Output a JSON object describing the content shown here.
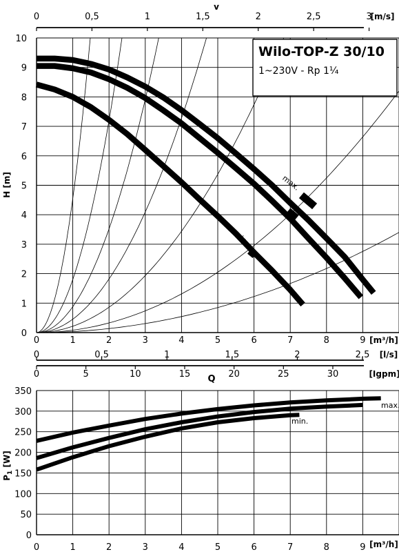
{
  "chart_data": [
    {
      "type": "line",
      "title": "Wilo-TOP-Z 30/10",
      "subtitle": "1~230V - Rp 1¼",
      "xlabel": "Q",
      "ylabel": "H [m]",
      "x_unit": "[m³/h]",
      "xlim": [
        0,
        10
      ],
      "ylim": [
        0,
        10
      ],
      "x_ticks": [
        "0",
        "1",
        "2",
        "3",
        "4",
        "5",
        "6",
        "7",
        "8",
        "9"
      ],
      "y_ticks": [
        "0",
        "1",
        "2",
        "3",
        "4",
        "5",
        "6",
        "7",
        "8",
        "9",
        "10"
      ],
      "grid": true,
      "secondary_axes": [
        {
          "label": "v",
          "unit": "[m/s]",
          "ticks": [
            "0",
            "0,5",
            "1",
            "1,5",
            "2",
            "2,5",
            "3"
          ],
          "values": [
            0,
            0.5,
            1,
            1.5,
            2,
            2.5,
            3
          ],
          "max": 3.27
        },
        {
          "unit": "[l/s]",
          "ticks": [
            "0",
            "0,5",
            "1",
            "1,5",
            "2",
            "2,5"
          ],
          "values": [
            0,
            0.5,
            1,
            1.5,
            2,
            2.5
          ],
          "max": 2.78
        },
        {
          "unit": "[Igpm]",
          "ticks": [
            "0",
            "5",
            "10",
            "15",
            "20",
            "25",
            "30"
          ],
          "values": [
            0,
            5,
            10,
            15,
            20,
            25,
            30
          ],
          "max": 36.7
        }
      ],
      "series": [
        {
          "name": "max.",
          "x": [
            0,
            0.5,
            1,
            1.5,
            2,
            2.5,
            3,
            3.5,
            4,
            4.5,
            5,
            5.5,
            6,
            6.5,
            7,
            7.5,
            8,
            8.5,
            9,
            9.3
          ],
          "y": [
            9.3,
            9.3,
            9.25,
            9.12,
            8.93,
            8.66,
            8.35,
            7.98,
            7.55,
            7.08,
            6.6,
            6.08,
            5.55,
            5.0,
            4.4,
            3.82,
            3.2,
            2.57,
            1.8,
            1.35
          ]
        },
        {
          "x": [
            0,
            0.5,
            1,
            1.5,
            2,
            2.5,
            3,
            3.5,
            4,
            4.5,
            5,
            5.5,
            6,
            6.5,
            7,
            7.5,
            8,
            8.5,
            8.95
          ],
          "y": [
            9.05,
            9.05,
            8.97,
            8.83,
            8.6,
            8.31,
            7.96,
            7.54,
            7.1,
            6.6,
            6.1,
            5.58,
            5.05,
            4.47,
            3.87,
            3.2,
            2.54,
            1.85,
            1.2
          ]
        },
        {
          "name": "min.",
          "x": [
            0,
            0.5,
            1,
            1.5,
            2,
            2.5,
            3,
            3.5,
            4,
            4.5,
            5,
            5.5,
            6,
            6.5,
            7,
            7.35
          ],
          "y": [
            8.42,
            8.25,
            8.0,
            7.65,
            7.22,
            6.74,
            6.2,
            5.65,
            5.1,
            4.52,
            3.95,
            3.36,
            2.72,
            2.1,
            1.45,
            0.95
          ]
        }
      ],
      "system_curves": [
        {
          "k": 4.55
        },
        {
          "k": 1.8
        },
        {
          "k": 0.88
        },
        {
          "k": 0.455
        },
        {
          "k": 0.215
        },
        {
          "k": 0.082
        },
        {
          "k": 0.034
        }
      ],
      "annotations": [
        {
          "text": "max."
        },
        {
          "text": "min."
        }
      ]
    },
    {
      "type": "line",
      "ylabel": "P1 [W]",
      "ylabel_main": "P",
      "ylabel_sub": "1",
      "ylabel_unit": "[W]",
      "x_unit": "[m³/h]",
      "xlim": [
        0,
        10
      ],
      "ylim": [
        0,
        350
      ],
      "x_ticks": [
        "0",
        "1",
        "2",
        "3",
        "4",
        "5",
        "6",
        "7",
        "8",
        "9"
      ],
      "y_ticks": [
        "0",
        "50",
        "100",
        "150",
        "200",
        "250",
        "300",
        "350"
      ],
      "grid": true,
      "series": [
        {
          "name": "max.",
          "x": [
            0,
            1,
            2,
            3,
            4,
            5,
            6,
            7,
            8,
            9,
            9.5
          ],
          "y": [
            228,
            248,
            265,
            281,
            294,
            305,
            314,
            321,
            326,
            330,
            331
          ]
        },
        {
          "x": [
            0,
            1,
            2,
            3,
            4,
            5,
            6,
            7,
            8,
            9
          ],
          "y": [
            186,
            212,
            235,
            256,
            273,
            287,
            298,
            306,
            311,
            315
          ]
        },
        {
          "name": "min.",
          "x": [
            0,
            1,
            2,
            3,
            4,
            5,
            6,
            7,
            7.25
          ],
          "y": [
            158,
            188,
            215,
            238,
            258,
            273,
            283,
            290,
            291
          ]
        }
      ],
      "annotations": [
        {
          "text": "max."
        },
        {
          "text": "min."
        }
      ]
    }
  ]
}
